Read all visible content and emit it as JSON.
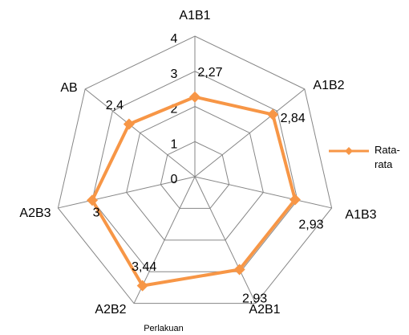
{
  "chart_data": {
    "type": "radar",
    "categories": [
      "A1B1",
      "A1B2",
      "A1B3",
      "A2B1",
      "A2B2",
      "A2B3",
      "AB"
    ],
    "series": [
      {
        "name": "Rata-rata",
        "color": "#f79646",
        "values": [
          2.27,
          2.84,
          2.93,
          2.93,
          3.44,
          3,
          2.4
        ],
        "value_labels": [
          "2,27",
          "2,84",
          "2,93",
          "2,93",
          "3,44",
          "3",
          "2,4"
        ]
      }
    ],
    "ylim": [
      0,
      4
    ],
    "yticks": [
      0,
      1,
      2,
      3,
      4
    ],
    "xlabel": "Perlakuan",
    "grid": true,
    "legend": "right"
  }
}
